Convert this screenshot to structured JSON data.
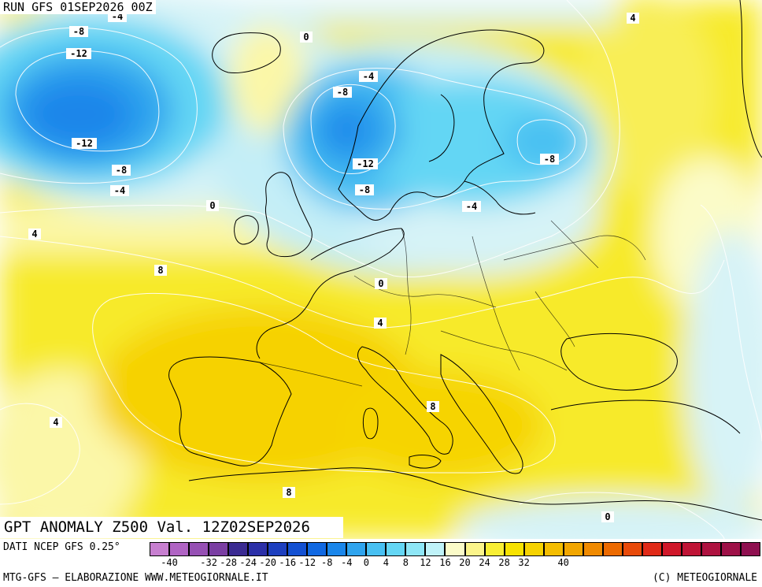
{
  "header": {
    "run": "RUN GFS 01SEP2026 00Z"
  },
  "title": "GPT ANOMALY Z500 Val. 12Z02SEP2026",
  "footer": {
    "source": "DATI NCEP GFS 0.25°",
    "credit": "MTG-GFS – ELABORAZIONE WWW.METEOGIORNALE.IT",
    "copyright": "(C) METEOGIORNALE"
  },
  "legend": {
    "colors": [
      "#c77fd0",
      "#b064c4",
      "#9650b4",
      "#7a3ea3",
      "#3a2a92",
      "#2b2fa8",
      "#1d3fbf",
      "#1350d2",
      "#1068e2",
      "#1a86ea",
      "#2fa4ee",
      "#48c0f2",
      "#64d6f4",
      "#8ee6f6",
      "#bff2f8",
      "#fbfbc8",
      "#fbf48a",
      "#f8ee34",
      "#f7e200",
      "#f6d200",
      "#f4bd00",
      "#f2a600",
      "#f08a00",
      "#ec6a00",
      "#e84a0a",
      "#e02a18",
      "#d0182a",
      "#bf1436",
      "#ae1240",
      "#9e1148",
      "#8f1050"
    ],
    "labels": [
      "-40",
      "-36",
      "-32",
      "-28",
      "-24",
      "-20",
      "-16",
      "-12",
      "-8",
      "-4",
      "0",
      "4",
      "8",
      "12",
      "16",
      "20",
      "24",
      "28",
      "32",
      "36",
      "40"
    ],
    "shown_labels": [
      "-40",
      "-32",
      "-28",
      "-24",
      "-20",
      "-16",
      "-12",
      "-8",
      "-4",
      "0",
      "4",
      "8",
      "12",
      "16",
      "20",
      "24",
      "28",
      "32",
      "40"
    ]
  },
  "contour_labels": [
    "-8",
    "-4",
    "-8",
    "-12",
    "-12",
    "-8",
    "-4",
    "0",
    "-4",
    "-8",
    "-12",
    "-8",
    "-8",
    "-4",
    "0",
    "4",
    "8",
    "0",
    "4",
    "8",
    "4",
    "8",
    "0",
    "4"
  ]
}
